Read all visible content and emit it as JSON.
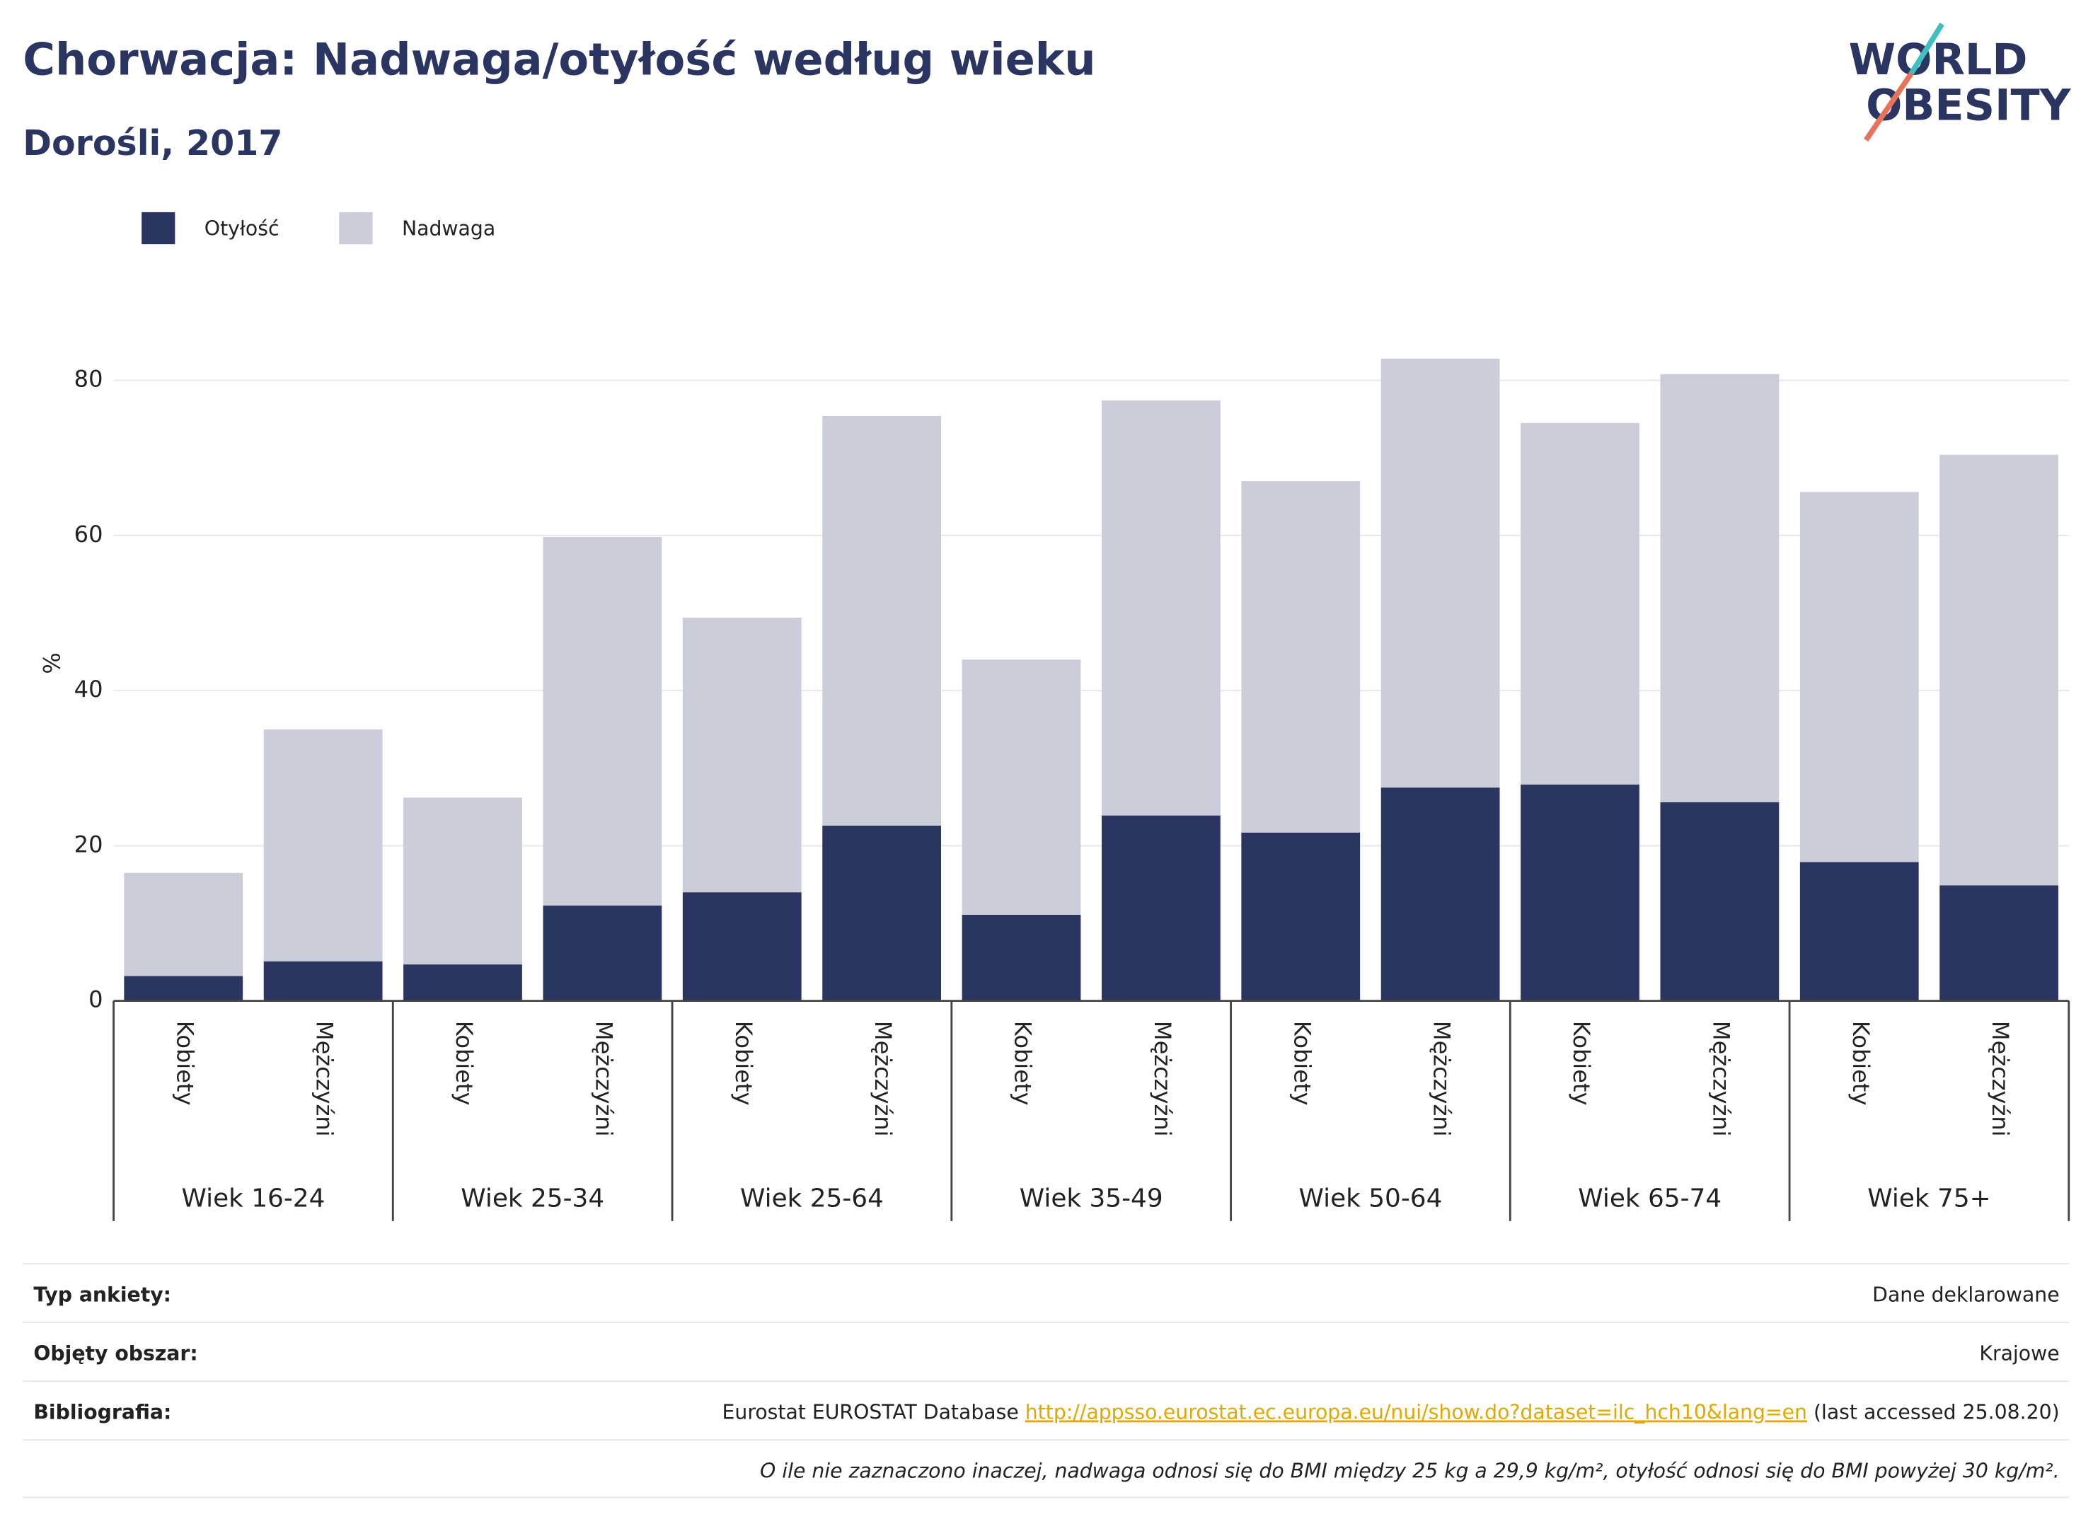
{
  "chart_data": {
    "type": "bar",
    "stacked": true,
    "title": "Chorwacja: Nadwaga/otyłość według wieku",
    "subtitle": "Dorośli, 2017",
    "y_label": "%",
    "categories": [
      "Kobiety",
      "Mężczyźni",
      "Kobiety",
      "Mężczyźni",
      "Kobiety",
      "Mężczyźni",
      "Kobiety",
      "Mężczyźni",
      "Kobiety",
      "Mężczyźni",
      "Kobiety",
      "Mężczyźni",
      "Kobiety",
      "Mężczyźni"
    ],
    "groups": [
      "Wiek 16-24",
      "Wiek 25-34",
      "Wiek 25-64",
      "Wiek 35-49",
      "Wiek 50-64",
      "Wiek 65-74",
      "Wiek 75+"
    ],
    "series": [
      {
        "name": "Otyłość",
        "color": "#2a3562",
        "values": [
          3.2,
          5.1,
          4.7,
          12.3,
          14,
          22.6,
          11.1,
          23.9,
          21.7,
          27.5,
          27.9,
          25.6,
          17.9,
          14.9
        ]
      },
      {
        "name": "Nadwaga",
        "color": "#cbcdd8",
        "values": [
          13.3,
          29.9,
          21.5,
          47.5,
          35.4,
          52.8,
          32.9,
          53.5,
          45.3,
          55.3,
          46.6,
          55.2,
          47.7,
          55.5
        ]
      }
    ],
    "ylim": [
      0,
      86
    ],
    "yticks": [
      0,
      20,
      40,
      60,
      80
    ],
    "grid": true,
    "legend": "top-left"
  },
  "logo": [
    "WORLD",
    "OBESITY"
  ],
  "footer": {
    "rows": [
      {
        "label": "Typ ankiety:",
        "value": "Dane deklarowane"
      },
      {
        "label": "Objęty obszar:",
        "value": "Krajowe"
      }
    ],
    "bibliography": {
      "label": "Bibliografia:",
      "text": "Eurostat EUROSTAT Database ",
      "link": "http://appsso.eurostat.ec.europa.eu/nui/show.do?dataset=ilc_hch10&lang=en",
      "suffix": " (last accessed 25.08.20)"
    },
    "note": "O ile nie zaznaczono inaczej, nadwaga odnosi się do BMI między 25 kg a 29,9 kg/m², otyłość odnosi się do BMI powyżej 30 kg/m²."
  }
}
